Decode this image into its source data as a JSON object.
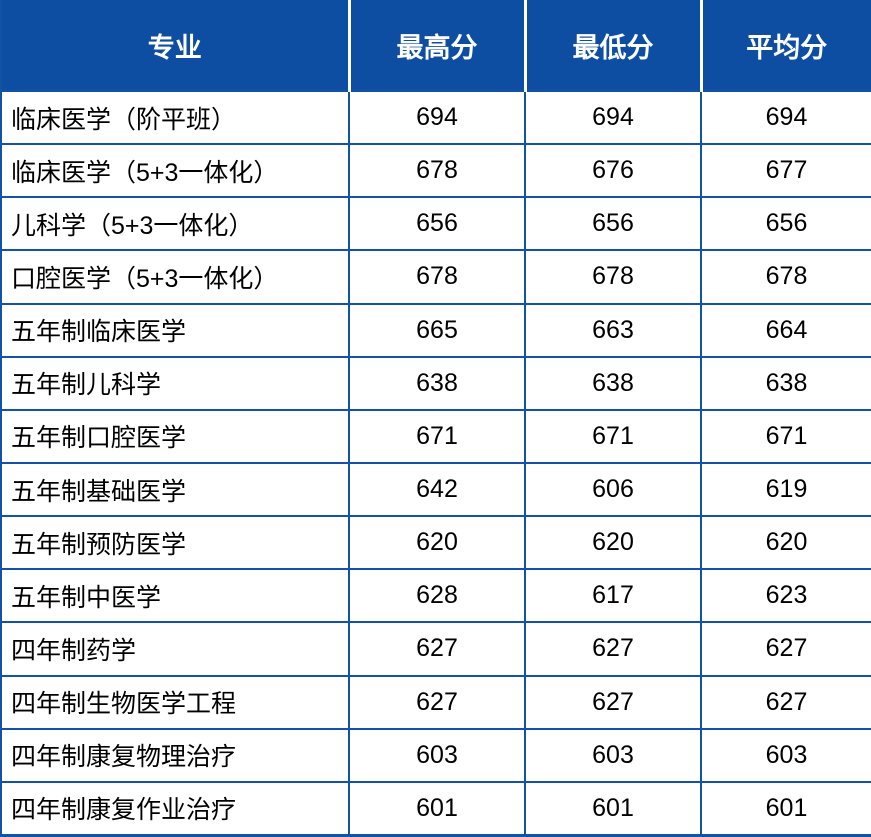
{
  "table": {
    "headers": [
      "专业",
      "最高分",
      "最低分",
      "平均分"
    ],
    "rows": [
      {
        "major": "临床医学（阶平班）",
        "max": "694",
        "min": "694",
        "avg": "694"
      },
      {
        "major": "临床医学（5+3一体化）",
        "max": "678",
        "min": "676",
        "avg": "677"
      },
      {
        "major": "儿科学（5+3一体化）",
        "max": "656",
        "min": "656",
        "avg": "656"
      },
      {
        "major": "口腔医学（5+3一体化）",
        "max": "678",
        "min": "678",
        "avg": "678"
      },
      {
        "major": "五年制临床医学",
        "max": "665",
        "min": "663",
        "avg": "664"
      },
      {
        "major": "五年制儿科学",
        "max": "638",
        "min": "638",
        "avg": "638"
      },
      {
        "major": "五年制口腔医学",
        "max": "671",
        "min": "671",
        "avg": "671"
      },
      {
        "major": "五年制基础医学",
        "max": "642",
        "min": "606",
        "avg": "619"
      },
      {
        "major": "五年制预防医学",
        "max": "620",
        "min": "620",
        "avg": "620"
      },
      {
        "major": "五年制中医学",
        "max": "628",
        "min": "617",
        "avg": "623"
      },
      {
        "major": "四年制药学",
        "max": "627",
        "min": "627",
        "avg": "627"
      },
      {
        "major": "四年制生物医学工程",
        "max": "627",
        "min": "627",
        "avg": "627"
      },
      {
        "major": "四年制康复物理治疗",
        "max": "603",
        "min": "603",
        "avg": "603"
      },
      {
        "major": "四年制康复作业治疗",
        "max": "601",
        "min": "601",
        "avg": "601"
      }
    ]
  },
  "chart_data": {
    "type": "table",
    "title": "",
    "columns": [
      "专业",
      "最高分",
      "最低分",
      "平均分"
    ],
    "rows": [
      [
        "临床医学（阶平班）",
        694,
        694,
        694
      ],
      [
        "临床医学（5+3一体化）",
        678,
        676,
        677
      ],
      [
        "儿科学（5+3一体化）",
        656,
        656,
        656
      ],
      [
        "口腔医学（5+3一体化）",
        678,
        678,
        678
      ],
      [
        "五年制临床医学",
        665,
        663,
        664
      ],
      [
        "五年制儿科学",
        638,
        638,
        638
      ],
      [
        "五年制口腔医学",
        671,
        671,
        671
      ],
      [
        "五年制基础医学",
        642,
        606,
        619
      ],
      [
        "五年制预防医学",
        620,
        620,
        620
      ],
      [
        "五年制中医学",
        628,
        617,
        623
      ],
      [
        "四年制药学",
        627,
        627,
        627
      ],
      [
        "四年制生物医学工程",
        627,
        627,
        627
      ],
      [
        "四年制康复物理治疗",
        603,
        603,
        603
      ],
      [
        "四年制康复作业治疗",
        601,
        601,
        601
      ]
    ]
  },
  "colors": {
    "header_bg": "#0d4ea2",
    "border": "#1353a5",
    "header_text": "#ffffff",
    "body_text": "#000000",
    "row_bg": "#ffffff"
  }
}
